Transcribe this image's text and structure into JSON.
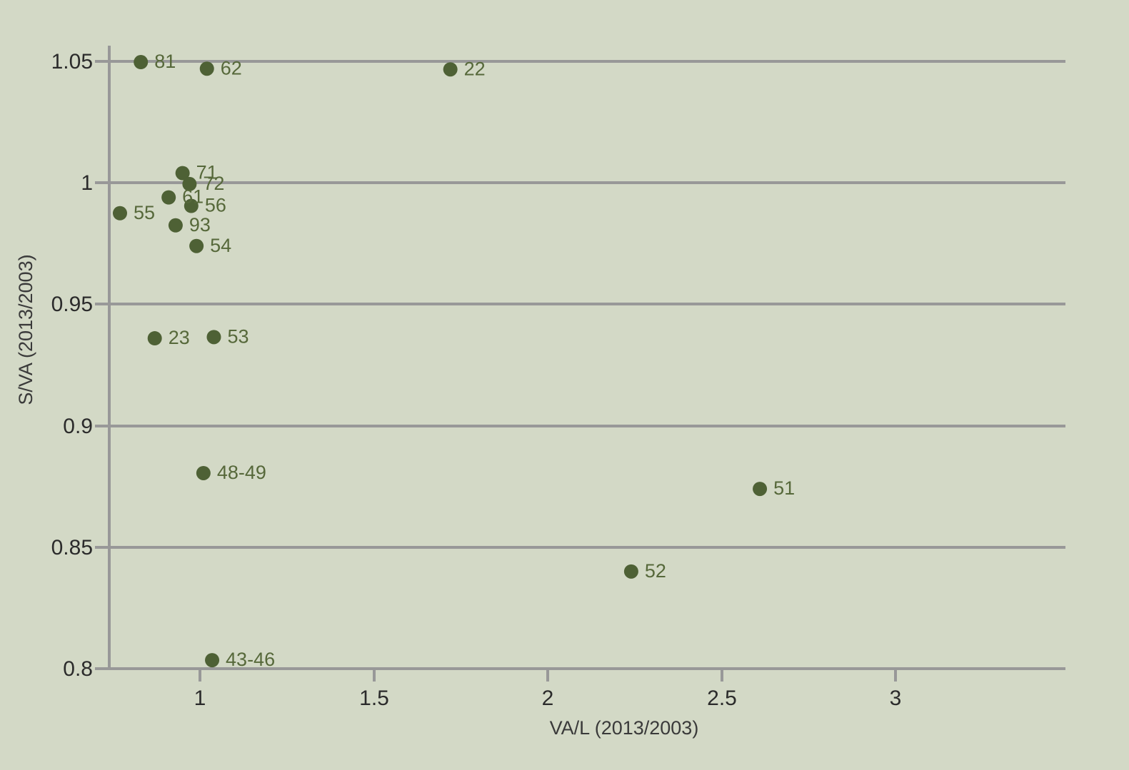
{
  "chart_data": {
    "type": "scatter",
    "title": "",
    "xlabel": "VA/L (2013/2003)",
    "ylabel": "S/VA (2013/2003)",
    "xlim": [
      0.74,
      3.5
    ],
    "ylim": [
      0.8,
      1.05
    ],
    "x_ticks": [
      1,
      1.5,
      2,
      2.5,
      3
    ],
    "x_tick_labels": [
      "1",
      "1.5",
      "2",
      "2.5",
      "3"
    ],
    "y_ticks": [
      0.8,
      0.85,
      0.9,
      0.95,
      1,
      1.05
    ],
    "y_tick_labels": [
      "0.8",
      "0.85",
      "0.9",
      "0.95",
      "1",
      "1.05"
    ],
    "grid": "horizontal",
    "point_color": "#4e6135",
    "label_color": "#56683a",
    "axis_color": "#989898",
    "background": "#d3d9c6",
    "points": [
      {
        "label": "81",
        "x": 0.83,
        "y": 1.0497
      },
      {
        "label": "62",
        "x": 1.02,
        "y": 1.047
      },
      {
        "label": "22",
        "x": 1.72,
        "y": 1.0467
      },
      {
        "label": "71",
        "x": 0.95,
        "y": 1.004
      },
      {
        "label": "72",
        "x": 0.97,
        "y": 0.9995
      },
      {
        "label": "61",
        "x": 0.91,
        "y": 0.994
      },
      {
        "label": "56",
        "x": 0.975,
        "y": 0.9905
      },
      {
        "label": "55",
        "x": 0.77,
        "y": 0.9875
      },
      {
        "label": "93",
        "x": 0.93,
        "y": 0.9825
      },
      {
        "label": "54",
        "x": 0.99,
        "y": 0.974
      },
      {
        "label": "23",
        "x": 0.87,
        "y": 0.936
      },
      {
        "label": "53",
        "x": 1.04,
        "y": 0.9365
      },
      {
        "label": "48-49",
        "x": 1.01,
        "y": 0.8805
      },
      {
        "label": "51",
        "x": 2.61,
        "y": 0.874
      },
      {
        "label": "52",
        "x": 2.24,
        "y": 0.84
      },
      {
        "label": "43-46",
        "x": 1.035,
        "y": 0.8035
      }
    ]
  }
}
